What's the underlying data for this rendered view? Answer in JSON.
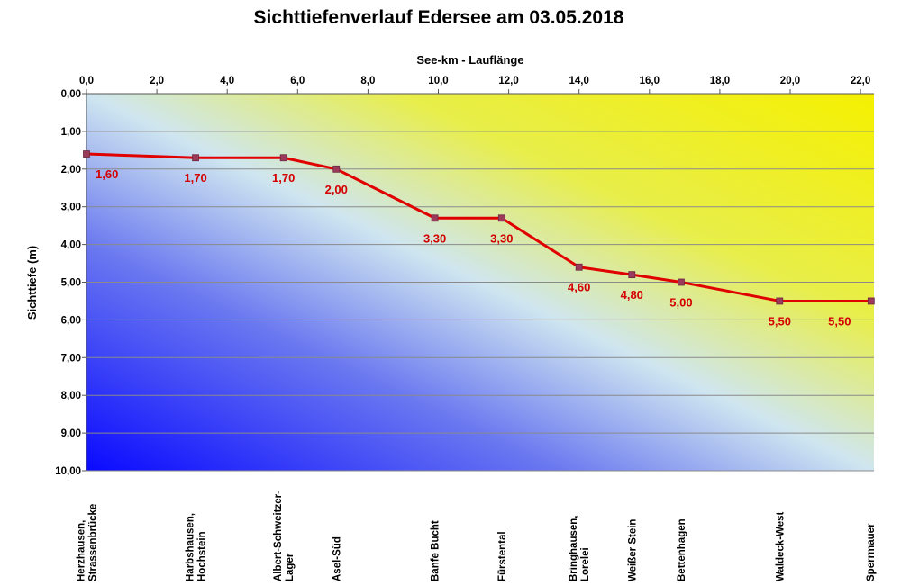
{
  "chart_data": {
    "type": "line",
    "title": "Sichttiefenverlauf Edersee am 03.05.2018",
    "xlabel": "See-km - Lauflänge",
    "ylabel": "Sichttiefe (m)",
    "xlim": [
      0,
      22.3
    ],
    "ylim": [
      0,
      10
    ],
    "y_inverted": true,
    "x_axis_position": "top",
    "grid": "horizontal",
    "x_ticks": [
      "0,0",
      "2,0",
      "4,0",
      "6,0",
      "8,0",
      "10,0",
      "12,0",
      "14,0",
      "16,0",
      "18,0",
      "20,0",
      "22,0"
    ],
    "y_ticks": [
      "0,00",
      "1,00",
      "2,00",
      "3,00",
      "4,00",
      "5,00",
      "6,00",
      "7,00",
      "8,00",
      "9,00",
      "10,00"
    ],
    "series": [
      {
        "color": "#e00000",
        "marker_color": "#9b3a5a",
        "x": [
          0.0,
          3.1,
          5.6,
          7.1,
          9.9,
          11.8,
          14.0,
          15.5,
          16.9,
          19.7,
          22.3
        ],
        "y": [
          1.6,
          1.7,
          1.7,
          2.0,
          3.3,
          3.3,
          4.6,
          4.8,
          5.0,
          5.5,
          5.5
        ],
        "labels": [
          "1,60",
          "1,70",
          "1,70",
          "2,00",
          "3,30",
          "3,30",
          "4,60",
          "4,80",
          "5,00",
          "5,50",
          "5,50"
        ]
      }
    ],
    "stations": [
      {
        "x": 0.0,
        "lines": [
          "Herzhausen,",
          "Strassenbrücke"
        ]
      },
      {
        "x": 3.1,
        "lines": [
          "Harbshausen,",
          "Hochstein"
        ]
      },
      {
        "x": 5.6,
        "lines": [
          "Albert-Schweitzer-",
          "Lager"
        ]
      },
      {
        "x": 7.1,
        "lines": [
          "Asel-Süd"
        ]
      },
      {
        "x": 9.9,
        "lines": [
          "Banfe Bucht"
        ]
      },
      {
        "x": 11.8,
        "lines": [
          "Fürstental"
        ]
      },
      {
        "x": 14.0,
        "lines": [
          "Bringhausen,",
          "Lorelei"
        ]
      },
      {
        "x": 15.5,
        "lines": [
          "Weißer Stein"
        ]
      },
      {
        "x": 16.9,
        "lines": [
          "Bettenhagen"
        ]
      },
      {
        "x": 19.7,
        "lines": [
          "Waldeck-West"
        ]
      },
      {
        "x": 22.3,
        "lines": [
          "Sperrmauer"
        ]
      }
    ],
    "background_colors": {
      "yellow": "#f5f000",
      "pale": "#cfe6f0",
      "blue": "#0a0aff"
    }
  }
}
